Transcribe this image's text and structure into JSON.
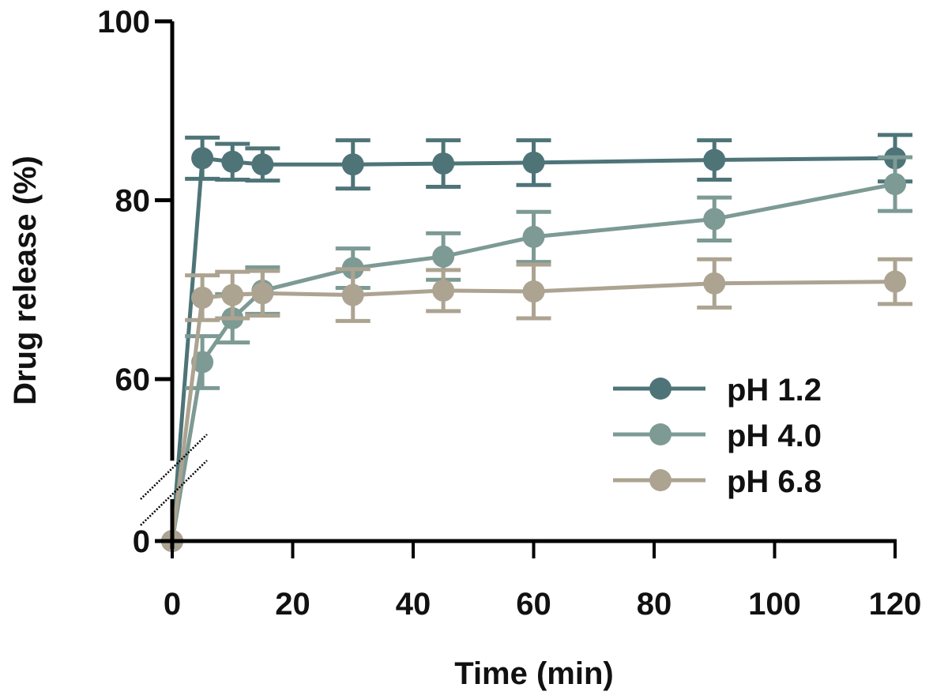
{
  "chart_data": {
    "type": "line",
    "title": "",
    "xlabel": "Time (min)",
    "ylabel": "Drug release (%)",
    "xlim": [
      0,
      120
    ],
    "ylim": [
      0,
      100
    ],
    "y_axis_break": [
      0,
      50
    ],
    "x_ticks": [
      0,
      20,
      40,
      60,
      80,
      100,
      120
    ],
    "x_tick_labels": [
      "0",
      "20",
      "40",
      "60",
      "80",
      "100",
      "120"
    ],
    "y_ticks": [
      0,
      60,
      80,
      100
    ],
    "y_tick_labels": [
      "0",
      "60",
      "80",
      "100"
    ],
    "grid": false,
    "legend_position": "center-right",
    "x": [
      0,
      5,
      10,
      15,
      30,
      45,
      60,
      90,
      120
    ],
    "series": [
      {
        "name": "pH 1.2",
        "color": "#4e7478",
        "values": [
          0,
          84.7,
          84.3,
          84.0,
          84.0,
          84.1,
          84.2,
          84.5,
          84.7
        ],
        "errors": [
          0,
          2.3,
          2.0,
          1.8,
          2.7,
          2.6,
          2.5,
          2.2,
          2.6
        ]
      },
      {
        "name": "pH 4.0",
        "color": "#7d9a94",
        "values": [
          0,
          61.9,
          66.8,
          69.9,
          72.4,
          73.7,
          75.9,
          77.9,
          81.8
        ],
        "errors": [
          0,
          2.9,
          2.7,
          2.6,
          2.2,
          2.6,
          2.8,
          2.4,
          3.0
        ]
      },
      {
        "name": "pH 6.8",
        "color": "#aca391",
        "values": [
          0,
          69.1,
          69.4,
          69.6,
          69.4,
          69.9,
          69.8,
          70.7,
          70.9
        ],
        "errors": [
          0,
          2.5,
          2.6,
          2.5,
          2.9,
          2.3,
          3.0,
          2.7,
          2.5
        ]
      }
    ]
  }
}
